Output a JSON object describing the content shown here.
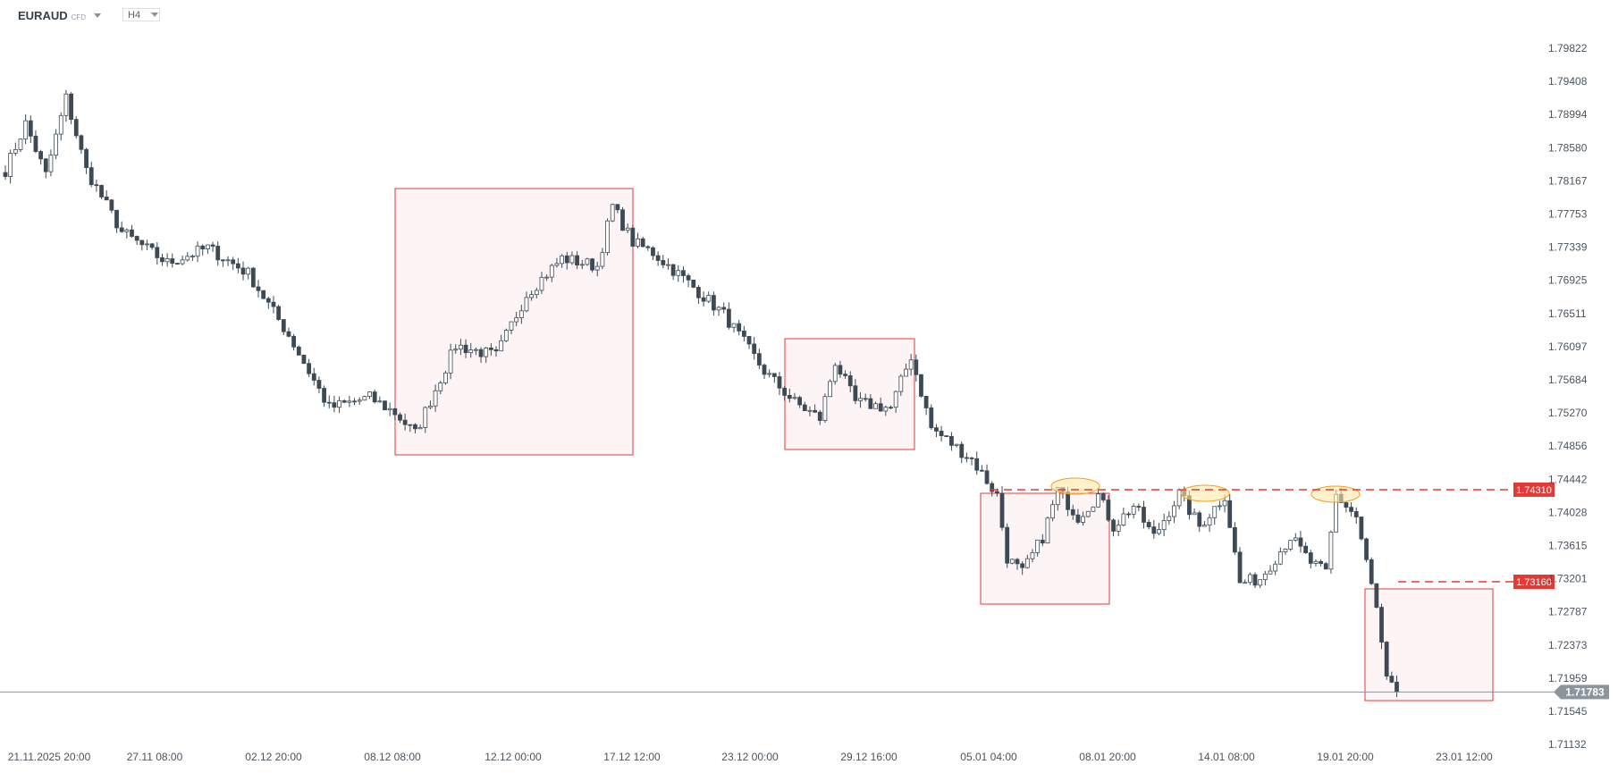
{
  "header": {
    "symbol": "EURAUD",
    "instrument_type": "CFD",
    "timeframe": "H4"
  },
  "price_axis": [
    "1.79822",
    "1.79408",
    "1.78994",
    "1.78580",
    "1.78167",
    "1.77753",
    "1.77339",
    "1.76925",
    "1.76511",
    "1.76097",
    "1.75684",
    "1.75270",
    "1.74856",
    "1.74442",
    "1.74028",
    "1.73615",
    "1.73201",
    "1.72787",
    "1.72373",
    "1.71959",
    "1.71545",
    "1.71132"
  ],
  "time_axis": [
    "21.11.2025  20:00",
    "27.11  08:00",
    "02.12  20:00",
    "08.12  08:00",
    "12.12  00:00",
    "17.12  12:00",
    "23.12  00:00",
    "29.12  16:00",
    "05.01  04:00",
    "08.01  20:00",
    "14.01  08:00",
    "19.01  20:00",
    "23.01  12:00"
  ],
  "levels": [
    {
      "label": "1.74310",
      "price": 1.7431
    },
    {
      "label": "1.73160",
      "price": 1.7316
    }
  ],
  "current_price": {
    "label": "1.71783",
    "price": 1.71783
  },
  "colors": {
    "up_border": "#3d4a55",
    "down_fill": "#3d4a55",
    "box_stroke": "#e03a3a",
    "box_fill": "#fdf5f5",
    "level": "#e53935",
    "ellipse_fill": "#fde7a8",
    "ellipse_stroke": "#f0a020",
    "current": "#8c959c"
  },
  "price_path": [
    [
      0,
      1.783
    ],
    [
      4,
      1.7888
    ],
    [
      8,
      1.7824
    ],
    [
      12,
      1.792
    ],
    [
      16,
      1.783
    ],
    [
      23,
      1.7753
    ],
    [
      32,
      1.7714
    ],
    [
      40,
      1.7733
    ],
    [
      48,
      1.7701
    ],
    [
      56,
      1.7624
    ],
    [
      64,
      1.7533
    ],
    [
      72,
      1.7546
    ],
    [
      77,
      1.7527
    ],
    [
      81,
      1.7501
    ],
    [
      89,
      1.7611
    ],
    [
      97,
      1.7598
    ],
    [
      103,
      1.7675
    ],
    [
      110,
      1.772
    ],
    [
      117,
      1.771
    ],
    [
      120,
      1.7785
    ],
    [
      124,
      1.774
    ],
    [
      128,
      1.7727
    ],
    [
      134,
      1.7695
    ],
    [
      142,
      1.765
    ],
    [
      150,
      1.7579
    ],
    [
      156,
      1.754
    ],
    [
      161,
      1.752
    ],
    [
      164,
      1.7591
    ],
    [
      168,
      1.754
    ],
    [
      175,
      1.7533
    ],
    [
      179,
      1.7598
    ],
    [
      183,
      1.7508
    ],
    [
      191,
      1.7469
    ],
    [
      196,
      1.7424
    ],
    [
      198,
      1.7346
    ],
    [
      201,
      1.7327
    ],
    [
      205,
      1.7372
    ],
    [
      208,
      1.743
    ],
    [
      212,
      1.7397
    ],
    [
      216,
      1.7424
    ],
    [
      219,
      1.7385
    ],
    [
      223,
      1.7411
    ],
    [
      227,
      1.7372
    ],
    [
      232,
      1.7426
    ],
    [
      236,
      1.7385
    ],
    [
      241,
      1.7424
    ],
    [
      244,
      1.7314
    ],
    [
      248,
      1.732
    ],
    [
      254,
      1.7372
    ],
    [
      258,
      1.734
    ],
    [
      261,
      1.7327
    ],
    [
      263,
      1.7424
    ],
    [
      267,
      1.7397
    ],
    [
      269,
      1.734
    ],
    [
      271,
      1.7282
    ],
    [
      273,
      1.7192
    ],
    [
      275,
      1.71783
    ]
  ]
}
